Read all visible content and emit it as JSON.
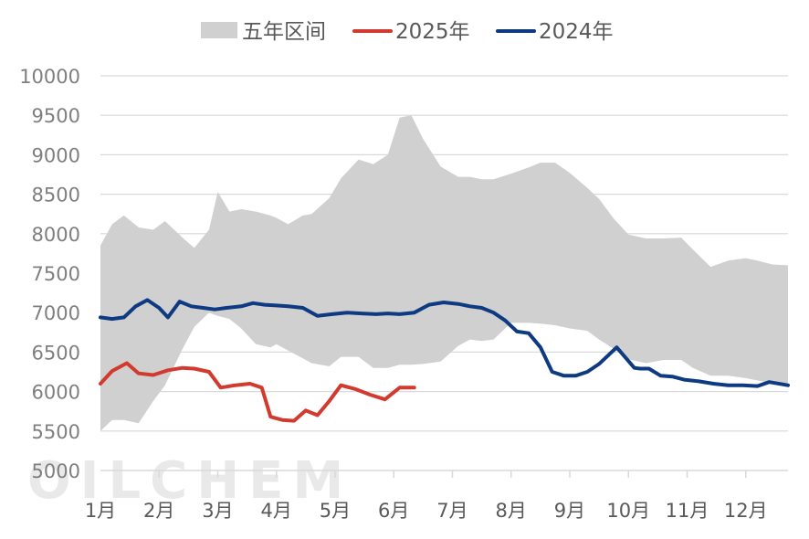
{
  "chart_data": {
    "type": "area",
    "watermark": "OILCHEM",
    "legend": [
      {
        "key": "band",
        "label": "五年区间",
        "color": "#d0d0d0",
        "marker": "square"
      },
      {
        "key": "s2025",
        "label": "2025年",
        "color": "#d33a2f",
        "marker": "line"
      },
      {
        "key": "s2024",
        "label": "2024年",
        "color": "#0e3a82",
        "marker": "line"
      }
    ],
    "legend_position": "top-center",
    "x_tick_labels": [
      "1月",
      "2月",
      "3月",
      "4月",
      "5月",
      "6月",
      "7月",
      "8月",
      "9月",
      "10月",
      "11月",
      "12月"
    ],
    "y_tick_labels": [
      "5000",
      "5500",
      "6000",
      "6500",
      "7000",
      "7500",
      "8000",
      "8500",
      "9000",
      "9500",
      "10000"
    ],
    "xlim": [
      1,
      12.72
    ],
    "ylim": [
      5000,
      10000
    ],
    "y_step": 500,
    "grid": "horizontal",
    "band": {
      "name": "五年区间",
      "color": "#d0d0d0",
      "x": [
        1,
        1.2,
        1.4,
        1.65,
        1.9,
        2.1,
        2.4,
        2.6,
        2.85,
        3.0,
        3.2,
        3.4,
        3.65,
        3.9,
        4.0,
        4.2,
        4.45,
        4.6,
        4.9,
        5.1,
        5.4,
        5.65,
        5.9,
        6.1,
        6.3,
        6.5,
        6.8,
        7.1,
        7.3,
        7.5,
        7.7,
        8.0,
        8.3,
        8.5,
        8.75,
        9.0,
        9.3,
        9.5,
        9.75,
        10.0,
        10.3,
        10.6,
        10.9,
        11.1,
        11.4,
        11.7,
        12.0,
        12.2,
        12.45,
        12.72
      ],
      "upper": [
        7850,
        8120,
        8230,
        8080,
        8050,
        8160,
        7950,
        7820,
        8050,
        8530,
        8280,
        8310,
        8280,
        8230,
        8200,
        8120,
        8230,
        8250,
        8450,
        8700,
        8940,
        8880,
        9000,
        9470,
        9500,
        9200,
        8850,
        8720,
        8720,
        8690,
        8690,
        8760,
        8840,
        8900,
        8900,
        8770,
        8580,
        8440,
        8190,
        7990,
        7940,
        7940,
        7950,
        7800,
        7580,
        7660,
        7690,
        7660,
        7610,
        7600
      ],
      "lower": [
        5500,
        5640,
        5640,
        5600,
        5880,
        6080,
        6540,
        6820,
        7000,
        6960,
        6920,
        6800,
        6600,
        6560,
        6600,
        6520,
        6420,
        6360,
        6320,
        6440,
        6440,
        6300,
        6300,
        6340,
        6340,
        6350,
        6380,
        6580,
        6660,
        6640,
        6660,
        6870,
        6870,
        6860,
        6840,
        6800,
        6770,
        6660,
        6540,
        6410,
        6360,
        6400,
        6400,
        6300,
        6200,
        6200,
        6170,
        6140,
        6110,
        6110
      ]
    },
    "series": [
      {
        "name": "2025年",
        "color": "#d33a2f",
        "x": [
          1,
          1.2,
          1.45,
          1.65,
          1.9,
          2.15,
          2.4,
          2.6,
          2.85,
          3.05,
          3.3,
          3.55,
          3.75,
          3.9,
          4.1,
          4.3,
          4.5,
          4.7,
          4.9,
          5.1,
          5.35,
          5.6,
          5.85,
          6.1,
          6.35
        ],
        "values": [
          6100,
          6260,
          6360,
          6230,
          6210,
          6270,
          6300,
          6290,
          6250,
          6050,
          6080,
          6100,
          6050,
          5680,
          5640,
          5630,
          5760,
          5700,
          5880,
          6080,
          6030,
          5960,
          5900,
          6050,
          6050
        ]
      },
      {
        "name": "2024年",
        "color": "#0e3a82",
        "x": [
          1,
          1.2,
          1.4,
          1.6,
          1.8,
          2.0,
          2.15,
          2.35,
          2.55,
          2.75,
          2.95,
          3.15,
          3.4,
          3.6,
          3.8,
          4.0,
          4.2,
          4.45,
          4.7,
          4.95,
          5.2,
          5.45,
          5.7,
          5.9,
          6.1,
          6.35,
          6.6,
          6.85,
          7.1,
          7.3,
          7.5,
          7.7,
          7.9,
          8.1,
          8.3,
          8.5,
          8.7,
          8.9,
          9.1,
          9.3,
          9.5,
          9.8,
          10.1,
          10.2,
          10.35,
          10.55,
          10.75,
          10.95,
          11.2,
          11.45,
          11.7,
          11.95,
          12.2,
          12.4,
          12.72
        ],
        "values": [
          6940,
          6920,
          6940,
          7080,
          7160,
          7060,
          6940,
          7140,
          7080,
          7060,
          7040,
          7060,
          7080,
          7120,
          7100,
          7090,
          7080,
          7060,
          6960,
          6980,
          7000,
          6990,
          6980,
          6990,
          6980,
          7000,
          7100,
          7130,
          7110,
          7080,
          7060,
          7000,
          6900,
          6760,
          6740,
          6560,
          6250,
          6200,
          6200,
          6250,
          6350,
          6560,
          6300,
          6290,
          6290,
          6200,
          6190,
          6150,
          6130,
          6100,
          6080,
          6080,
          6070,
          6120,
          6080
        ]
      }
    ]
  }
}
